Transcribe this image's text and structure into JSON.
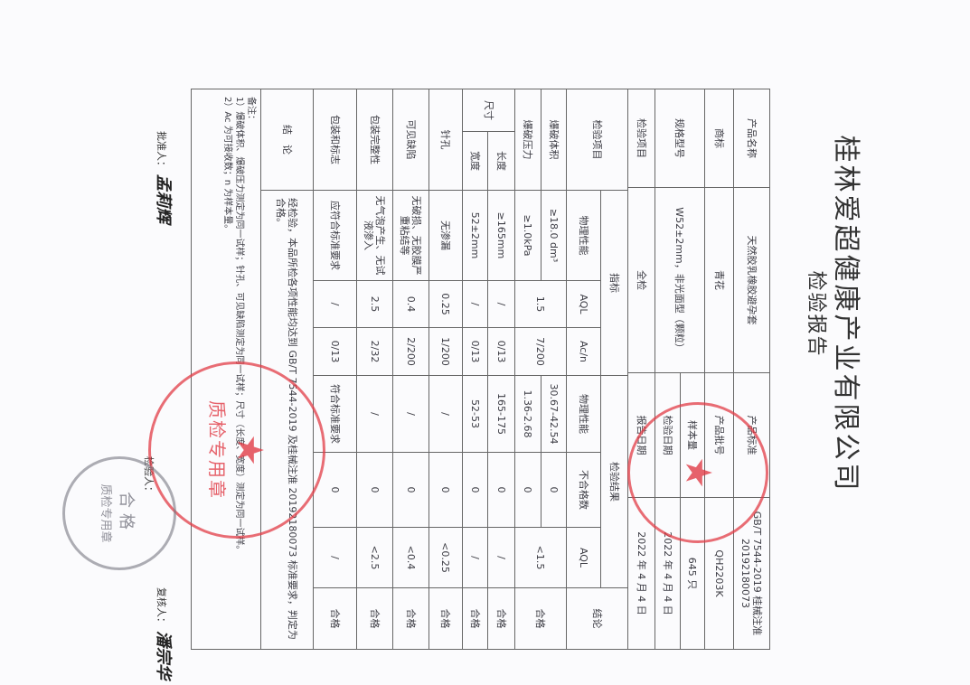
{
  "header": {
    "company": "桂林爱超健康产业有限公司",
    "title": "检验报告"
  },
  "info": {
    "product_name_label": "产品名称",
    "product_name": "天然胶乳橡胶避孕套",
    "brand_label": "商标",
    "brand": "青花",
    "spec_label": "规格型号",
    "spec": "W52±2mm，非光面型（颗粒）",
    "item_label": "检验项目",
    "item": "全检",
    "standard_label": "产品标准",
    "standard": "GB/T 7544-2019 桂械注准 20192180073",
    "batch_label": "产品批号",
    "batch": "QH2203K",
    "sample_label": "样本量",
    "sample": "645 只",
    "test_date_label": "检验日期",
    "test_date": "2022 年 4 月 4 日",
    "report_date_label": "报告日期",
    "report_date": "2022 年 4 月 4 日"
  },
  "table": {
    "headers": {
      "item": "检验项目",
      "index": "指标",
      "result": "检验结果",
      "conclusion": "结论",
      "physical": "物理性能",
      "aql": "AQL",
      "acn": "Ac/n",
      "r_physical": "物理性能",
      "defects": "不合格数",
      "r_aql": "AQL"
    },
    "size_label": "尺寸",
    "rows": [
      {
        "item": "爆破体积",
        "physical": "≥18.0 dm³",
        "aql": "1.5",
        "acn": "7/200",
        "r_physical": "30.67-42.54",
        "defects": "0",
        "r_aql": "<1.5",
        "conclusion": "合格"
      },
      {
        "item": "爆破压力",
        "physical": "≥1.0kPa",
        "r_physical": "1.36-2.68",
        "defects": "0"
      },
      {
        "item": "长度",
        "physical": "≥165mm",
        "aql": "/",
        "acn": "0/13",
        "r_physical": "165-175",
        "defects": "0",
        "r_aql": "/",
        "conclusion": "合格"
      },
      {
        "item": "宽度",
        "physical": "52±2mm",
        "aql": "/",
        "acn": "0/13",
        "r_physical": "52-53",
        "defects": "0",
        "r_aql": "/",
        "conclusion": "合格"
      },
      {
        "item": "针孔",
        "physical": "无渗漏",
        "aql": "0.25",
        "acn": "1/200",
        "r_physical": "/",
        "defects": "0",
        "r_aql": "<0.25",
        "conclusion": "合格"
      },
      {
        "item": "可见缺陷",
        "physical": "无破损、无胶膜严重粘结等",
        "aql": "0.4",
        "acn": "2/200",
        "r_physical": "/",
        "defects": "0",
        "r_aql": "<0.4",
        "conclusion": "合格"
      },
      {
        "item": "包装完整性",
        "physical": "无气泡产生、无试液渗入",
        "aql": "2.5",
        "acn": "2/32",
        "r_physical": "/",
        "defects": "0",
        "r_aql": "<2.5",
        "conclusion": "合格"
      },
      {
        "item": "包装和标志",
        "physical": "应符合标准要求",
        "aql": "/",
        "acn": "0/13",
        "r_physical": "符合标准要求",
        "defects": "0",
        "r_aql": "/",
        "conclusion": "合格"
      }
    ],
    "final_label": "结　论",
    "final_text": "经检验，本品所检各项性能均达到 GB/T 7544-2019 及桂械注准 20192180073 标准要求，判定为合格。"
  },
  "notes": {
    "label": "备注：",
    "line1": "1）爆破体积、爆破压力测定为同一试样；针孔、可见缺陷测定为同一试样；尺寸（长度、宽度）测定为同一试样。",
    "line2": "2）Ac 为可接收数；n 为样本量。"
  },
  "signatures": {
    "approver_label": "批准人：",
    "approver": "孟莉辉",
    "reviewer_label": "复核人：",
    "reviewer": "潘宗华",
    "inspector_label": "检验人："
  },
  "stamps": {
    "red_large_text": "质检专用章",
    "grey_text_top": "合格",
    "grey_text_bottom": "质检专用章"
  },
  "colors": {
    "stamp_red": "#e13c46",
    "stamp_grey": "#787882",
    "ink": "#3c3c44"
  }
}
